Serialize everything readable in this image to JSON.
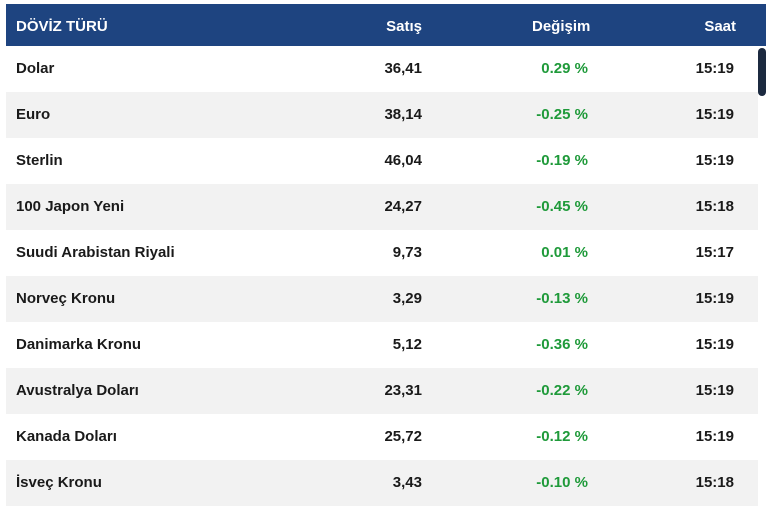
{
  "header": {
    "name": "DÖVİZ TÜRÜ",
    "sell": "Satış",
    "change": "Değişim",
    "time": "Saat"
  },
  "colors": {
    "header_bg": "#1e4480",
    "change_text": "#1f9a3a",
    "stripe_bg": "#f2f2f2"
  },
  "rows": [
    {
      "name": "Dolar",
      "sell": "36,41",
      "change": "0.29 %",
      "time": "15:19"
    },
    {
      "name": "Euro",
      "sell": "38,14",
      "change": "-0.25 %",
      "time": "15:19"
    },
    {
      "name": "Sterlin",
      "sell": "46,04",
      "change": "-0.19 %",
      "time": "15:19"
    },
    {
      "name": "100 Japon Yeni",
      "sell": "24,27",
      "change": "-0.45 %",
      "time": "15:18"
    },
    {
      "name": "Suudi Arabistan Riyali",
      "sell": "9,73",
      "change": "0.01 %",
      "time": "15:17"
    },
    {
      "name": "Norveç Kronu",
      "sell": "3,29",
      "change": "-0.13 %",
      "time": "15:19"
    },
    {
      "name": "Danimarka Kronu",
      "sell": "5,12",
      "change": "-0.36 %",
      "time": "15:19"
    },
    {
      "name": "Avustralya Doları",
      "sell": "23,31",
      "change": "-0.22 %",
      "time": "15:19"
    },
    {
      "name": "Kanada Doları",
      "sell": "25,72",
      "change": "-0.12 %",
      "time": "15:19"
    },
    {
      "name": "İsveç Kronu",
      "sell": "3,43",
      "change": "-0.10 %",
      "time": "15:18"
    }
  ]
}
